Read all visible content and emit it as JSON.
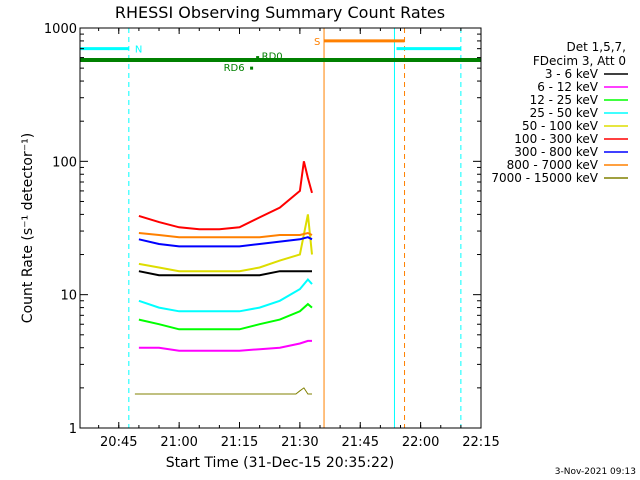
{
  "chart_data": {
    "type": "line",
    "title": "RHESSI Observing Summary Count Rates",
    "xlabel": "Start Time (31-Dec-15 20:35:22)",
    "ylabel": "Count Rate (s⁻¹ detector⁻¹)",
    "yscale": "log",
    "ylim": [
      1,
      1000
    ],
    "xlim": [
      "20:35:22",
      "22:15:00"
    ],
    "x_ticks": [
      "20:45",
      "21:00",
      "21:15",
      "21:30",
      "21:45",
      "22:00",
      "22:15"
    ],
    "y_ticks": [
      "1",
      "10",
      "100",
      "1000"
    ],
    "legend_header": [
      "Det 1,5,7,",
      "FDecim 3, Att 0"
    ],
    "legend_position": "right",
    "timestamp": "3-Nov-2021 09:13",
    "series": [
      {
        "name": "3 - 6 keV",
        "color": "#000000",
        "times": [
          "20:50",
          "20:55",
          "21:00",
          "21:05",
          "21:10",
          "21:15",
          "21:20",
          "21:25",
          "21:30",
          "21:32",
          "21:33"
        ],
        "values": [
          15,
          14,
          14,
          14,
          14,
          14,
          14,
          15,
          15,
          15,
          15
        ]
      },
      {
        "name": "6 - 12 keV",
        "color": "#ff00ff",
        "times": [
          "20:50",
          "20:55",
          "21:00",
          "21:05",
          "21:10",
          "21:15",
          "21:20",
          "21:25",
          "21:30",
          "21:32",
          "21:33"
        ],
        "values": [
          4,
          4,
          3.8,
          3.8,
          3.8,
          3.8,
          3.9,
          4,
          4.3,
          4.5,
          4.5
        ]
      },
      {
        "name": "12 - 25 keV",
        "color": "#00ff00",
        "times": [
          "20:50",
          "20:55",
          "21:00",
          "21:05",
          "21:10",
          "21:15",
          "21:20",
          "21:25",
          "21:30",
          "21:32",
          "21:33"
        ],
        "values": [
          6.5,
          6,
          5.5,
          5.5,
          5.5,
          5.5,
          6,
          6.5,
          7.5,
          8.5,
          8
        ]
      },
      {
        "name": "25 - 50 keV",
        "color": "#00ffff",
        "times": [
          "20:50",
          "20:55",
          "21:00",
          "21:05",
          "21:10",
          "21:15",
          "21:20",
          "21:25",
          "21:30",
          "21:32",
          "21:33"
        ],
        "values": [
          9,
          8,
          7.5,
          7.5,
          7.5,
          7.5,
          8,
          9,
          11,
          13,
          12
        ]
      },
      {
        "name": "50 - 100 keV",
        "color": "#dddd00",
        "times": [
          "20:50",
          "20:55",
          "21:00",
          "21:05",
          "21:10",
          "21:15",
          "21:20",
          "21:25",
          "21:30",
          "21:32",
          "21:33"
        ],
        "values": [
          17,
          16,
          15,
          15,
          15,
          15,
          16,
          18,
          20,
          40,
          20
        ]
      },
      {
        "name": "100 - 300 keV",
        "color": "#ff0000",
        "times": [
          "20:50",
          "20:55",
          "21:00",
          "21:05",
          "21:10",
          "21:15",
          "21:20",
          "21:25",
          "21:30",
          "21:31",
          "21:32",
          "21:33"
        ],
        "values": [
          39,
          35,
          32,
          31,
          31,
          32,
          38,
          45,
          60,
          100,
          75,
          58
        ]
      },
      {
        "name": "300 - 800 keV",
        "color": "#0000ff",
        "times": [
          "20:50",
          "20:55",
          "21:00",
          "21:05",
          "21:10",
          "21:15",
          "21:20",
          "21:25",
          "21:30",
          "21:32",
          "21:33"
        ],
        "values": [
          26,
          24,
          23,
          23,
          23,
          23,
          24,
          25,
          26,
          27,
          26
        ]
      },
      {
        "name": "800 - 7000 keV",
        "color": "#ff8000",
        "times": [
          "20:50",
          "20:55",
          "21:00",
          "21:05",
          "21:10",
          "21:15",
          "21:20",
          "21:25",
          "21:30",
          "21:32",
          "21:33"
        ],
        "values": [
          29,
          28,
          27,
          27,
          27,
          27,
          27,
          28,
          28,
          29,
          28
        ]
      },
      {
        "name": "7000 - 15000 keV",
        "color": "#808000",
        "times": [
          "20:49",
          "21:29",
          "21:30",
          "21:31",
          "21:32",
          "21:33"
        ],
        "values": [
          1.8,
          1.8,
          1.9,
          2,
          1.8,
          1.8
        ]
      }
    ],
    "annotations": [
      {
        "label": "N",
        "color": "#00ffff",
        "start": "20:35:22",
        "end": "20:47:30",
        "level": 700
      },
      {
        "label": "",
        "color": "#00ffff",
        "start": "21:54",
        "end": "22:10",
        "level": 700
      },
      {
        "label": "S",
        "color": "#ff8000",
        "start": "21:36",
        "end": "21:56",
        "level": 800
      },
      {
        "label": "",
        "color": "#008000",
        "start": "20:35:22",
        "end": "22:15",
        "level": 575
      },
      {
        "label": "RD0",
        "color": "#008000",
        "start": "21:19:30",
        "end": "21:19:30",
        "level": 600
      },
      {
        "label": "RD6",
        "color": "#008000",
        "start": "21:18",
        "end": "21:18",
        "level": 500
      }
    ],
    "vlines": [
      {
        "time": "20:47:30",
        "color": "#00ffff",
        "dashed": true
      },
      {
        "time": "21:53:30",
        "color": "#00ffff",
        "dashed": false
      },
      {
        "time": "22:10",
        "color": "#00ffff",
        "dashed": true
      },
      {
        "time": "21:36",
        "color": "#ff8000",
        "dashed": false
      },
      {
        "time": "21:56",
        "color": "#ff8000",
        "dashed": true
      }
    ]
  }
}
